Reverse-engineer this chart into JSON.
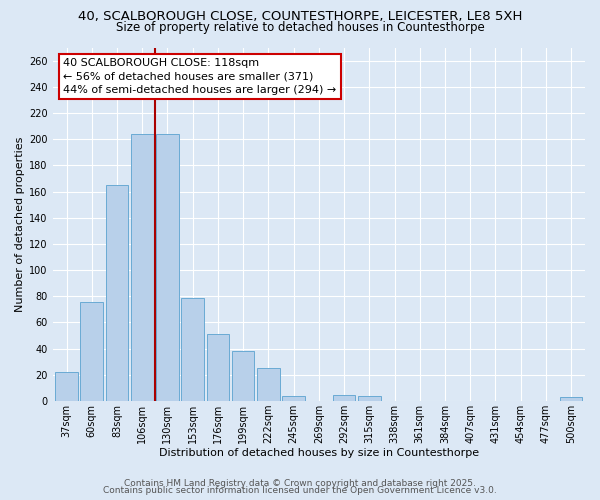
{
  "title1": "40, SCALBOROUGH CLOSE, COUNTESTHORPE, LEICESTER, LE8 5XH",
  "title2": "Size of property relative to detached houses in Countesthorpe",
  "xlabel": "Distribution of detached houses by size in Countesthorpe",
  "ylabel": "Number of detached properties",
  "bar_labels": [
    "37sqm",
    "60sqm",
    "83sqm",
    "106sqm",
    "130sqm",
    "153sqm",
    "176sqm",
    "199sqm",
    "222sqm",
    "245sqm",
    "269sqm",
    "292sqm",
    "315sqm",
    "338sqm",
    "361sqm",
    "384sqm",
    "407sqm",
    "431sqm",
    "454sqm",
    "477sqm",
    "500sqm"
  ],
  "bar_values": [
    22,
    76,
    165,
    204,
    204,
    79,
    51,
    38,
    25,
    4,
    0,
    5,
    4,
    0,
    0,
    0,
    0,
    0,
    0,
    0,
    3
  ],
  "bar_color": "#b8d0ea",
  "bar_edge_color": "#6aaad4",
  "vline_color": "#aa0000",
  "annotation_text": "40 SCALBOROUGH CLOSE: 118sqm\n← 56% of detached houses are smaller (371)\n44% of semi-detached houses are larger (294) →",
  "annotation_box_color": "#ffffff",
  "annotation_box_edge": "#cc0000",
  "ylim": [
    0,
    270
  ],
  "yticks": [
    0,
    20,
    40,
    60,
    80,
    100,
    120,
    140,
    160,
    180,
    200,
    220,
    240,
    260
  ],
  "background_color": "#dce8f5",
  "footer1": "Contains HM Land Registry data © Crown copyright and database right 2025.",
  "footer2": "Contains public sector information licensed under the Open Government Licence v3.0.",
  "title1_fontsize": 9.5,
  "title2_fontsize": 8.5,
  "axis_label_fontsize": 8,
  "tick_fontsize": 7,
  "annotation_fontsize": 8,
  "footer_fontsize": 6.5
}
